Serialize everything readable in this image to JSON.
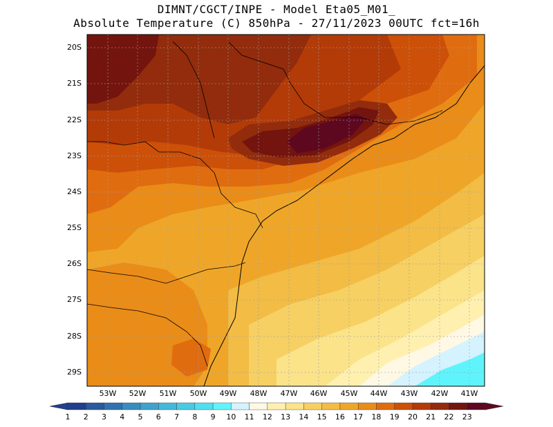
{
  "title": {
    "line1": "DIMNT/CGCT/INPE -  Model Eta05_M01_",
    "line2": "Absolute Temperature (C) 850hPa -  27/11/2023 00UTC fct=16h"
  },
  "map": {
    "lat_labels": [
      "20S",
      "21S",
      "22S",
      "23S",
      "24S",
      "25S",
      "26S",
      "27S",
      "28S",
      "29S"
    ],
    "lon_labels": [
      "53W",
      "52W",
      "51W",
      "50W",
      "49W",
      "48W",
      "47W",
      "46W",
      "45W",
      "44W",
      "43W",
      "42W",
      "41W"
    ]
  },
  "colorbar": {
    "labels": [
      "1",
      "2",
      "3",
      "4",
      "5",
      "6",
      "7",
      "8",
      "9",
      "10",
      "11",
      "12",
      "13",
      "14",
      "15",
      "16",
      "17",
      "18",
      "19",
      "20",
      "21",
      "22",
      "23"
    ],
    "colors": [
      "#223f8c",
      "#2a5a9e",
      "#2f73b0",
      "#3a8cc0",
      "#3fa2cc",
      "#44b8da",
      "#48cae4",
      "#4fdff0",
      "#5ff4fb",
      "#d4f3ff",
      "#fff8e4",
      "#fff0b0",
      "#fbe38a",
      "#f6d062",
      "#f2bc45",
      "#efa628",
      "#ea8c18",
      "#e06c10",
      "#cc5008",
      "#b33b08",
      "#922c0c",
      "#74140e",
      "#5e0820"
    ]
  }
}
